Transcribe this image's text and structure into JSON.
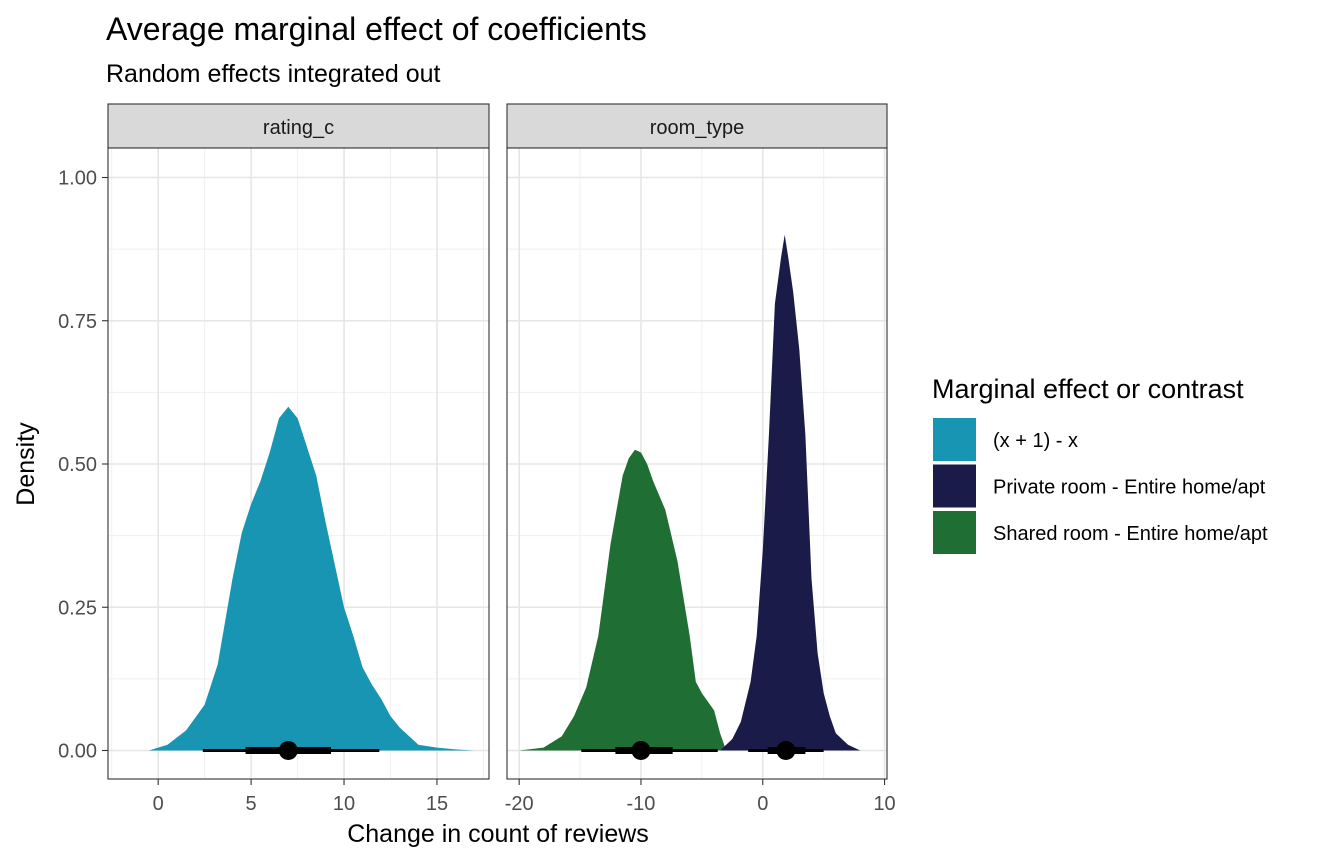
{
  "chart_data": {
    "type": "area",
    "subtype": "density (halfeye) faceted",
    "title": "Average marginal effect of coefficients",
    "subtitle": "Random effects integrated out",
    "xlabel": "Change in count of reviews",
    "ylabel": "Density",
    "ylim": [
      0,
      1.0
    ],
    "y_ticks": [
      0,
      0.25,
      0.5,
      0.75,
      1.0
    ],
    "y_tick_labels": [
      "0.00",
      "0.25",
      "0.50",
      "0.75",
      "1.00"
    ],
    "grid": true,
    "legend": {
      "title": "Marginal effect or contrast",
      "position": "right",
      "entries": [
        {
          "label": "(x + 1) - x",
          "color": "#1795b2"
        },
        {
          "label": "Private room - Entire home/apt",
          "color": "#1b1b4a"
        },
        {
          "label": "Shared room - Entire home/apt",
          "color": "#1f6e33"
        }
      ]
    },
    "facets": [
      {
        "label": "rating_c",
        "xlim": [
          -2.7,
          17.8
        ],
        "x_ticks": [
          0,
          5,
          10,
          15
        ],
        "x_tick_labels": [
          "0",
          "5",
          "10",
          "15"
        ],
        "series": [
          {
            "name": "(x + 1) - x",
            "color": "#1795b2",
            "x": [
              -0.5,
              0.5,
              1.5,
              2.5,
              3.2,
              4.0,
              4.5,
              5.0,
              5.5,
              6.0,
              6.5,
              7.0,
              7.5,
              8.0,
              8.5,
              9.0,
              10.0,
              10.5,
              11.0,
              11.5,
              12.0,
              12.5,
              13.0,
              14.0,
              15.0,
              16.0,
              17.0
            ],
            "density": [
              0.0,
              0.01,
              0.035,
              0.08,
              0.15,
              0.3,
              0.38,
              0.43,
              0.47,
              0.52,
              0.58,
              0.6,
              0.58,
              0.53,
              0.48,
              0.4,
              0.25,
              0.2,
              0.145,
              0.115,
              0.09,
              0.06,
              0.04,
              0.01,
              0.005,
              0.002,
              0.0
            ],
            "point": 7.0,
            "interval_66": [
              4.7,
              9.3
            ],
            "interval_95": [
              2.4,
              11.9
            ]
          }
        ]
      },
      {
        "label": "room_type",
        "xlim": [
          -21,
          10.2
        ],
        "x_ticks": [
          -20,
          -10,
          0,
          10
        ],
        "x_tick_labels": [
          "-20",
          "-10",
          "0",
          "10"
        ],
        "series": [
          {
            "name": "Shared room - Entire home/apt",
            "color": "#1f6e33",
            "x": [
              -20.0,
              -18.0,
              -16.5,
              -15.5,
              -14.5,
              -13.5,
              -13.0,
              -12.5,
              -12.0,
              -11.5,
              -11.0,
              -10.5,
              -10.0,
              -9.5,
              -9.0,
              -8.0,
              -7.0,
              -6.0,
              -5.5,
              -5.0,
              -4.0,
              -3.5,
              -3.0
            ],
            "density": [
              0.0,
              0.005,
              0.025,
              0.06,
              0.11,
              0.2,
              0.28,
              0.36,
              0.42,
              0.48,
              0.51,
              0.525,
              0.52,
              0.5,
              0.47,
              0.42,
              0.33,
              0.2,
              0.12,
              0.1,
              0.07,
              0.03,
              0.0
            ],
            "point": -10.0,
            "interval_66": [
              -12.1,
              -7.4
            ],
            "interval_95": [
              -14.9,
              -3.7
            ]
          },
          {
            "name": "Private room - Entire home/apt",
            "color": "#1b1b4a",
            "x": [
              -3.5,
              -2.5,
              -1.8,
              -1.0,
              -0.5,
              0.0,
              0.5,
              1.0,
              1.5,
              1.8,
              2.1,
              2.5,
              3.0,
              3.5,
              4.0,
              4.5,
              5.0,
              5.5,
              6.0,
              7.0,
              8.0
            ],
            "density": [
              0.0,
              0.02,
              0.05,
              0.12,
              0.2,
              0.35,
              0.55,
              0.78,
              0.86,
              0.9,
              0.86,
              0.8,
              0.7,
              0.55,
              0.3,
              0.17,
              0.1,
              0.06,
              0.03,
              0.01,
              0.0
            ],
            "point": 1.9,
            "interval_66": [
              0.4,
              3.5
            ],
            "interval_95": [
              -1.2,
              5.0
            ]
          }
        ]
      }
    ]
  }
}
